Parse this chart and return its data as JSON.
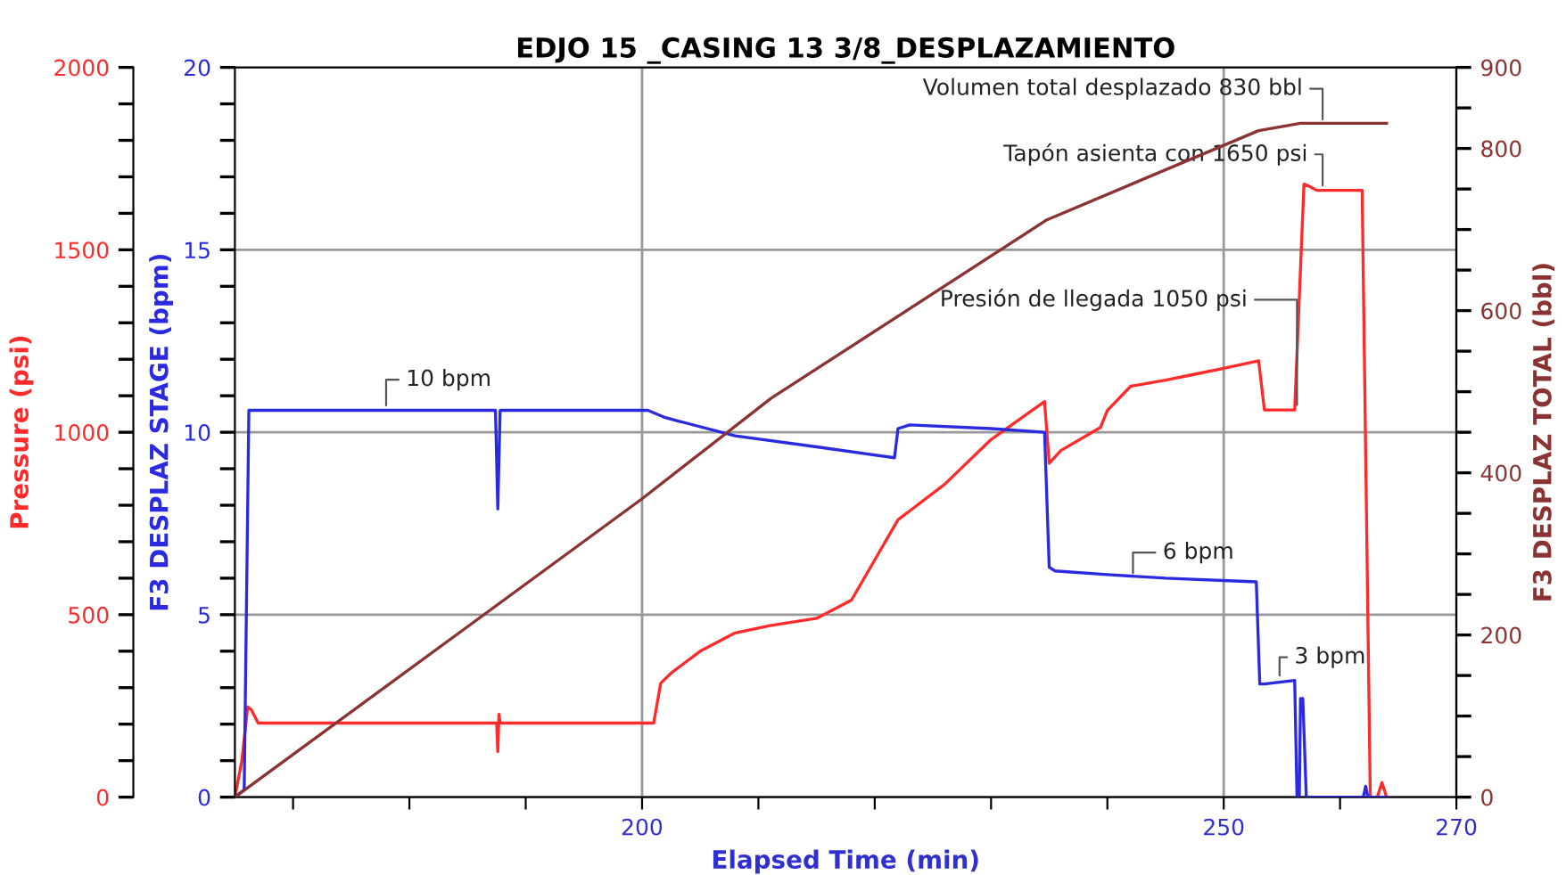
{
  "chart_data": {
    "type": "line",
    "title": "EDJO 15 _CASING 13 3/8_DESPLAZAMIENTO",
    "xlabel": "Elapsed Time (min)",
    "ylabel": "Pressure (psi)",
    "y2label": "F3 DESPLAZ STAGE (bpm)",
    "y3label": "F3 DESPLAZ TOTAL (bbl)",
    "xlim": [
      165,
      270
    ],
    "xticks": [
      {
        "value": 170,
        "label": null
      },
      {
        "value": 180,
        "label": null
      },
      {
        "value": 190,
        "label": null
      },
      200,
      {
        "value": 210,
        "label": null
      },
      {
        "value": 220,
        "label": null
      },
      {
        "value": 230,
        "label": null
      },
      {
        "value": 240,
        "label": null
      },
      250,
      {
        "value": 260,
        "label": null
      },
      270
    ],
    "ylim": [
      0,
      2000
    ],
    "yticks": [
      0,
      {
        "value": 100,
        "label": null
      },
      {
        "value": 200,
        "label": null
      },
      {
        "value": 300,
        "label": null
      },
      {
        "value": 400,
        "label": null
      },
      500,
      {
        "value": 600,
        "label": null
      },
      {
        "value": 700,
        "label": null
      },
      {
        "value": 800,
        "label": null
      },
      {
        "value": 900,
        "label": null
      },
      1000,
      {
        "value": 1100,
        "label": null
      },
      {
        "value": 1200,
        "label": null
      },
      {
        "value": 1300,
        "label": null
      },
      {
        "value": 1400,
        "label": null
      },
      1500,
      {
        "value": 1600,
        "label": null
      },
      {
        "value": 1700,
        "label": null
      },
      {
        "value": 1800,
        "label": null
      },
      {
        "value": 1900,
        "label": null
      },
      2000
    ],
    "y2lim": [
      0,
      20
    ],
    "y2ticks": [
      0,
      {
        "value": 1,
        "label": null
      },
      {
        "value": 2,
        "label": null
      },
      {
        "value": 3,
        "label": null
      },
      {
        "value": 4,
        "label": null
      },
      5,
      {
        "value": 6,
        "label": null
      },
      {
        "value": 7,
        "label": null
      },
      {
        "value": 8,
        "label": null
      },
      {
        "value": 9,
        "label": null
      },
      10,
      {
        "value": 11,
        "label": null
      },
      {
        "value": 12,
        "label": null
      },
      {
        "value": 13,
        "label": null
      },
      {
        "value": 14,
        "label": null
      },
      15,
      {
        "value": 16,
        "label": null
      },
      {
        "value": 17,
        "label": null
      },
      {
        "value": 18,
        "label": null
      },
      {
        "value": 19,
        "label": null
      },
      20
    ],
    "y3lim": [
      0,
      900
    ],
    "y3ticks": [
      0,
      {
        "value": 50,
        "label": null
      },
      {
        "value": 100,
        "label": null
      },
      {
        "value": 150,
        "label": null
      },
      200,
      {
        "value": 250,
        "label": null
      },
      {
        "value": 300,
        "label": null
      },
      {
        "value": 350,
        "label": null
      },
      400,
      {
        "value": 450,
        "label": null
      },
      {
        "value": 500,
        "label": null
      },
      {
        "value": 550,
        "label": null
      },
      600,
      {
        "value": 650,
        "label": null
      },
      {
        "value": 700,
        "label": null
      },
      {
        "value": 750,
        "label": null
      },
      800,
      {
        "value": 850,
        "label": null
      },
      900
    ],
    "grid": true,
    "legend": false,
    "marker": "none",
    "line_style": "solid",
    "series": [
      {
        "axis": "y",
        "color": "#ff2a2a",
        "x": [
          165,
          165.6,
          166.1,
          166.4,
          167,
          187.5,
          187.6,
          187.7,
          187.8,
          201,
          201.6,
          202.5,
          205,
          208,
          211,
          215,
          218,
          222,
          226,
          230,
          234.6,
          235,
          236,
          239.4,
          240,
          242,
          245,
          247.5,
          250,
          253,
          253.5,
          256.1,
          256.9,
          257.3,
          258,
          261.9,
          262.6,
          263.2,
          263.6,
          264
        ],
        "values": [
          0,
          100,
          247,
          240,
          203,
          203,
          125,
          227,
          203,
          203,
          312,
          340,
          400,
          450,
          470,
          490,
          540,
          760,
          857,
          980,
          1084,
          915,
          950,
          1013,
          1060,
          1126,
          1143,
          1159,
          1175,
          1196,
          1061,
          1061,
          1680,
          1675,
          1663,
          1663,
          0,
          0,
          40,
          0
        ]
      },
      {
        "axis": "y2",
        "color": "#2a2ae0",
        "x": [
          165,
          165.8,
          166.2,
          170,
          180,
          187.4,
          187.6,
          187.8,
          195,
          200.5,
          202,
          208,
          215,
          221.7,
          222,
          223,
          230,
          234.6,
          235,
          235.5,
          240,
          245,
          252.8,
          253.1,
          253.5,
          256.1,
          256.3,
          256.5,
          256.6,
          256.8,
          257.1,
          257.3,
          262,
          262.2,
          262.4,
          264
        ],
        "values": [
          0,
          0.2,
          10.6,
          10.6,
          10.6,
          10.6,
          7.9,
          10.6,
          10.6,
          10.6,
          10.4,
          9.9,
          9.6,
          9.3,
          10.1,
          10.2,
          10.1,
          10.0,
          6.3,
          6.2,
          6.1,
          6.0,
          5.9,
          3.1,
          3.1,
          3.2,
          0,
          0,
          2.7,
          2.7,
          0,
          0,
          0,
          0.3,
          0,
          0
        ]
      },
      {
        "axis": "y3",
        "color": "#8b3333",
        "x": [
          165,
          200,
          211.1,
          234.8,
          253,
          256.6,
          264
        ],
        "values": [
          0,
          368,
          492,
          712,
          822,
          831,
          831
        ]
      }
    ],
    "annotations": [
      {
        "text": "10 bpm",
        "x": 178,
        "y": 1060
      },
      {
        "text": "6 bpm",
        "x": 242.2,
        "y": 600
      },
      {
        "text": "3 bpm",
        "x": 254.8,
        "y": 320
      },
      {
        "text": "Presión de llegada 1050 psi",
        "x": 256.3,
        "y": 1061
      },
      {
        "text": "Tapón asienta con 1650 psi",
        "x": 258.5,
        "y": 1663
      },
      {
        "text": "Volumen total desplazado 830 bbl",
        "x": 258.5,
        "y": 1844
      }
    ]
  }
}
